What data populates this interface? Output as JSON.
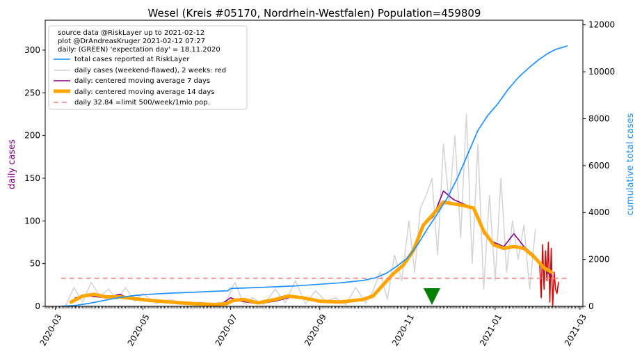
{
  "chart_data": {
    "type": "line",
    "title": "Wesel (Kreis #05170, Nordrhein-Westfalen) Population=459809",
    "ylabel_left": "daily cases",
    "ylabel_right": "cumulative total cases",
    "ylim_left": [
      0,
      335
    ],
    "ylim_right": [
      0,
      12200
    ],
    "xlim": [
      "2020-02-23",
      "2021-03-03"
    ],
    "yticks_left": [
      0,
      50,
      100,
      150,
      200,
      250,
      300
    ],
    "yticks_right": [
      0,
      2000,
      4000,
      6000,
      8000,
      10000,
      12000
    ],
    "xticks": [
      "2020-03",
      "2020-05",
      "2020-07",
      "2020-09",
      "2020-11",
      "2021-01",
      "2021-03"
    ],
    "grid": false,
    "legend_position": "top-left",
    "legend_info": [
      "source data @RiskLayer up to 2021-02-12",
      "plot @DrAndreasKruger 2021-02-12 07:27",
      "daily: (GREEN) 'expectation day' = 18.11.2020"
    ],
    "legend_items": [
      {
        "label": "total cases reported at RiskLayer",
        "color": "#1e90ff",
        "style": "line"
      },
      {
        "label": "daily cases (weekend-flawed), 2 weeks: red",
        "color": "#d3d3d3",
        "style": "line"
      },
      {
        "label": "daily: centered moving average 7 days",
        "color": "#800080",
        "style": "line"
      },
      {
        "label": "daily: centered moving average 14 days",
        "color": "#ffa500",
        "style": "thick"
      },
      {
        "label": "daily 32.84 =limit 500/week/1mio pop.",
        "color": "#f08080",
        "style": "dashed"
      }
    ],
    "limit_value": 32.84,
    "limit_range": [
      "2020-03-05",
      "2021-02-20"
    ],
    "expectation_day": "2020-11-18",
    "series": [
      {
        "name": "total cases reported at RiskLayer",
        "axis": "right",
        "color": "#1e90ff",
        "x": [
          "2020-03-05",
          "2020-03-15",
          "2020-03-25",
          "2020-04-05",
          "2020-04-15",
          "2020-04-25",
          "2020-05-05",
          "2020-05-20",
          "2020-06-05",
          "2020-06-20",
          "2020-06-29",
          "2020-07-01",
          "2020-07-15",
          "2020-08-01",
          "2020-08-15",
          "2020-09-01",
          "2020-09-15",
          "2020-10-01",
          "2020-10-10",
          "2020-10-17",
          "2020-10-24",
          "2020-11-01",
          "2020-11-08",
          "2020-11-15",
          "2020-11-22",
          "2020-11-29",
          "2020-12-06",
          "2020-12-13",
          "2020-12-20",
          "2020-12-27",
          "2021-01-03",
          "2021-01-10",
          "2021-01-17",
          "2021-01-24",
          "2021-01-31",
          "2021-02-07",
          "2021-02-12",
          "2021-02-20"
        ],
        "values": [
          0,
          40,
          130,
          260,
          380,
          460,
          510,
          560,
          600,
          640,
          660,
          760,
          790,
          830,
          870,
          940,
          1000,
          1100,
          1220,
          1400,
          1680,
          2060,
          2620,
          3320,
          3960,
          4650,
          5500,
          6500,
          7500,
          8150,
          8650,
          9250,
          9750,
          10150,
          10500,
          10800,
          10950,
          11100
        ]
      },
      {
        "name": "daily cases (weekend-flawed), 2 weeks: red",
        "axis": "left",
        "color": "#d3d3d3",
        "x": [
          "2020-03-08",
          "2020-03-14",
          "2020-03-20",
          "2020-03-26",
          "2020-04-01",
          "2020-04-07",
          "2020-04-13",
          "2020-04-19",
          "2020-04-25",
          "2020-05-01",
          "2020-05-10",
          "2020-05-20",
          "2020-06-01",
          "2020-06-10",
          "2020-06-20",
          "2020-06-28",
          "2020-07-04",
          "2020-07-10",
          "2020-07-16",
          "2020-07-24",
          "2020-08-01",
          "2020-08-08",
          "2020-08-15",
          "2020-08-22",
          "2020-08-29",
          "2020-09-05",
          "2020-09-12",
          "2020-09-19",
          "2020-09-26",
          "2020-10-03",
          "2020-10-08",
          "2020-10-13",
          "2020-10-18",
          "2020-10-23",
          "2020-10-28",
          "2020-11-02",
          "2020-11-06",
          "2020-11-10",
          "2020-11-14",
          "2020-11-18",
          "2020-11-22",
          "2020-11-26",
          "2020-11-30",
          "2020-12-04",
          "2020-12-08",
          "2020-12-12",
          "2020-12-16",
          "2020-12-20",
          "2020-12-24",
          "2020-12-28",
          "2021-01-01",
          "2021-01-05",
          "2021-01-09",
          "2021-01-13",
          "2021-01-17",
          "2021-01-21",
          "2021-01-25",
          "2021-01-29"
        ],
        "values": [
          0,
          22,
          5,
          28,
          12,
          20,
          8,
          22,
          6,
          15,
          3,
          8,
          2,
          5,
          1,
          6,
          28,
          3,
          10,
          2,
          20,
          4,
          30,
          3,
          18,
          6,
          10,
          2,
          22,
          4,
          18,
          40,
          8,
          60,
          30,
          100,
          40,
          115,
          130,
          150,
          60,
          190,
          120,
          200,
          80,
          225,
          50,
          190,
          20,
          130,
          30,
          150,
          40,
          100,
          55,
          95,
          20,
          90
        ]
      },
      {
        "name": "daily: centered moving average 7 days",
        "axis": "left",
        "color": "#800080",
        "x": [
          "2020-03-15",
          "2020-03-25",
          "2020-04-05",
          "2020-04-15",
          "2020-04-22",
          "2020-05-01",
          "2020-05-15",
          "2020-06-01",
          "2020-06-15",
          "2020-06-25",
          "2020-07-01",
          "2020-07-08",
          "2020-07-20",
          "2020-08-01",
          "2020-08-15",
          "2020-09-01",
          "2020-09-15",
          "2020-10-01",
          "2020-10-08",
          "2020-10-15",
          "2020-10-22",
          "2020-10-29",
          "2020-11-05",
          "2020-11-12",
          "2020-11-19",
          "2020-11-26",
          "2020-12-03",
          "2020-12-10",
          "2020-12-17",
          "2020-12-24",
          "2020-12-31",
          "2021-01-07",
          "2021-01-14",
          "2021-01-21",
          "2021-01-28",
          "2021-02-04",
          "2021-02-09"
        ],
        "values": [
          10,
          12,
          10,
          14,
          9,
          8,
          6,
          4,
          2,
          3,
          10,
          6,
          3,
          6,
          12,
          5,
          5,
          8,
          12,
          25,
          38,
          47,
          68,
          95,
          105,
          135,
          125,
          120,
          115,
          85,
          75,
          70,
          85,
          70,
          60,
          45,
          35
        ]
      },
      {
        "name": "daily: centered moving average 14 days",
        "axis": "left",
        "color": "#ffa500",
        "x": [
          "2020-03-12",
          "2020-03-20",
          "2020-03-28",
          "2020-04-05",
          "2020-04-15",
          "2020-04-25",
          "2020-05-05",
          "2020-05-20",
          "2020-06-05",
          "2020-06-20",
          "2020-06-28",
          "2020-07-03",
          "2020-07-10",
          "2020-07-20",
          "2020-08-01",
          "2020-08-10",
          "2020-08-20",
          "2020-09-01",
          "2020-09-15",
          "2020-10-01",
          "2020-10-08",
          "2020-10-15",
          "2020-10-22",
          "2020-10-29",
          "2020-11-05",
          "2020-11-12",
          "2020-11-19",
          "2020-11-26",
          "2020-12-03",
          "2020-12-10",
          "2020-12-17",
          "2020-12-24",
          "2020-12-31",
          "2021-01-07",
          "2021-01-14",
          "2021-01-21",
          "2021-01-28",
          "2021-02-04",
          "2021-02-09"
        ],
        "values": [
          5,
          12,
          14,
          11,
          11,
          9,
          7,
          5,
          3,
          2,
          3,
          7,
          8,
          4,
          8,
          12,
          10,
          6,
          5,
          8,
          12,
          25,
          38,
          48,
          65,
          95,
          108,
          122,
          120,
          118,
          115,
          88,
          72,
          68,
          70,
          68,
          58,
          45,
          40
        ]
      },
      {
        "name": "daily cases, last 2 weeks",
        "axis": "left",
        "color": "#e00000",
        "x": [
          "2021-02-01",
          "2021-02-02",
          "2021-02-03",
          "2021-02-04",
          "2021-02-05",
          "2021-02-06",
          "2021-02-07",
          "2021-02-08",
          "2021-02-09",
          "2021-02-10",
          "2021-02-11",
          "2021-02-12",
          "2021-02-13",
          "2021-02-14"
        ],
        "values": [
          48,
          10,
          72,
          20,
          65,
          30,
          75,
          5,
          68,
          0,
          40,
          20,
          15,
          28
        ]
      }
    ]
  }
}
